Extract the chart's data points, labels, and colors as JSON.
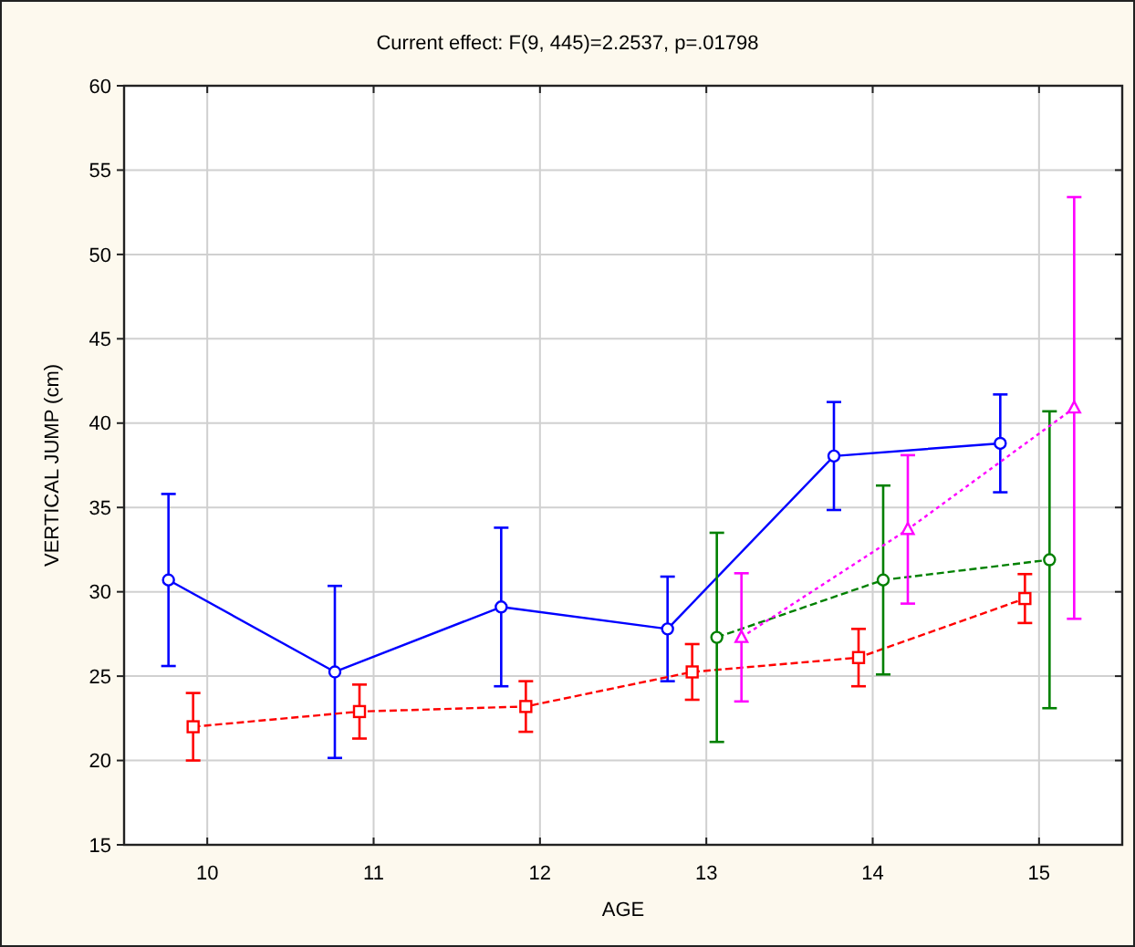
{
  "chart_data": {
    "type": "line",
    "title": "Current effect: F(9, 445)=2.2537, p=.01798",
    "xlabel": "AGE",
    "ylabel": "VERTICAL JUMP (cm)",
    "categories": [
      "10",
      "11",
      "12",
      "13",
      "14",
      "15"
    ],
    "series": [
      {
        "color": "#0000ff",
        "marker": "circle",
        "line_style": "solid",
        "values": [
          30.7,
          25.25,
          29.1,
          27.8,
          38.05,
          38.8
        ],
        "errors": [
          5.1,
          5.1,
          4.7,
          3.1,
          3.2,
          2.9
        ]
      },
      {
        "color": "#ff0000",
        "marker": "square",
        "line_style": "dashed",
        "values": [
          22.0,
          22.9,
          23.2,
          25.25,
          26.1,
          29.6
        ],
        "errors": [
          2.0,
          1.6,
          1.5,
          1.65,
          1.7,
          1.45
        ]
      },
      {
        "color": "#008000",
        "marker": "circle",
        "line_style": "dashed",
        "values": [
          null,
          null,
          null,
          27.3,
          30.7,
          31.9
        ],
        "errors": [
          null,
          null,
          null,
          6.2,
          5.6,
          8.8
        ]
      },
      {
        "color": "#ff00ff",
        "marker": "triangle",
        "line_style": "dotted",
        "values": [
          null,
          null,
          null,
          27.3,
          33.7,
          40.9
        ],
        "errors": [
          null,
          null,
          null,
          3.8,
          4.4,
          12.5
        ]
      }
    ],
    "ylim": [
      15,
      60
    ],
    "yticks": [
      15,
      20,
      25,
      30,
      35,
      40,
      45,
      50,
      55,
      60
    ],
    "grid": true
  }
}
